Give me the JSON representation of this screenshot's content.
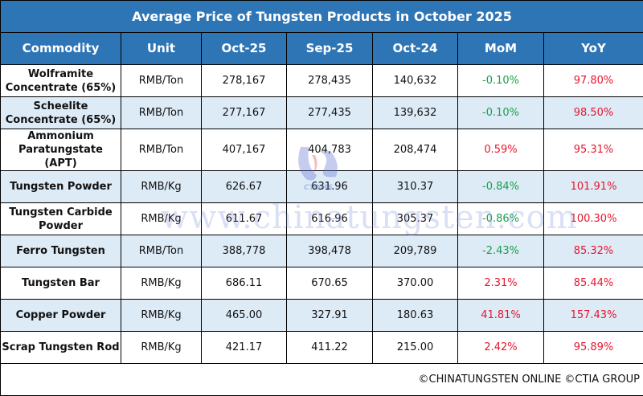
{
  "title": "Average Price of Tungsten Products in October 2025",
  "columns": [
    "Commodity",
    "Unit",
    "Oct-25",
    "Sep-25",
    "Oct-24",
    "MoM",
    "YoY"
  ],
  "rows": [
    {
      "commodity": "Wolframite Concentrate (65%)",
      "unit": "RMB/Ton",
      "oct25": "278,167",
      "sep25": "278,435",
      "oct24": "140,632",
      "mom": "-0.10%",
      "yoy": "97.80%"
    },
    {
      "commodity": "Scheelite Concentrate (65%)",
      "unit": "RMB/Ton",
      "oct25": "277,167",
      "sep25": "277,435",
      "oct24": "139,632",
      "mom": "-0.10%",
      "yoy": "98.50%"
    },
    {
      "commodity": "Ammonium Paratungstate (APT)",
      "unit": "RMB/Ton",
      "oct25": "407,167",
      "sep25": "404,783",
      "oct24": "208,474",
      "mom": "0.59%",
      "yoy": "95.31%"
    },
    {
      "commodity": "Tungsten Powder",
      "unit": "RMB/Kg",
      "oct25": "626.67",
      "sep25": "631.96",
      "oct24": "310.37",
      "mom": "-0.84%",
      "yoy": "101.91%"
    },
    {
      "commodity": "Tungsten Carbide Powder",
      "unit": "RMB/Kg",
      "oct25": "611.67",
      "sep25": "616.96",
      "oct24": "305.37",
      "mom": "-0.86%",
      "yoy": "100.30%"
    },
    {
      "commodity": "Ferro Tungsten",
      "unit": "RMB/Ton",
      "oct25": "388,778",
      "sep25": "398,478",
      "oct24": "209,789",
      "mom": "-2.43%",
      "yoy": "85.32%"
    },
    {
      "commodity": "Tungsten Bar",
      "unit": "RMB/Kg",
      "oct25": "686.11",
      "sep25": "670.65",
      "oct24": "370.00",
      "mom": "2.31%",
      "yoy": "85.44%"
    },
    {
      "commodity": "Copper Powder",
      "unit": "RMB/Kg",
      "oct25": "465.00",
      "sep25": "327.91",
      "oct24": "180.63",
      "mom": "41.81%",
      "yoy": "157.43%"
    },
    {
      "commodity": "Scrap Tungsten Rod",
      "unit": "RMB/Kg",
      "oct25": "421.17",
      "sep25": "411.22",
      "oct24": "215.00",
      "mom": "2.42%",
      "yoy": "95.89%"
    }
  ],
  "footer": "©CHINATUNGSTEN ONLINE ©CTIA GROUP",
  "watermark": "www.chinatungsten.com",
  "logo_text": "CTOMS",
  "colors": {
    "header": "#2E75B6",
    "alt_row": "#DDEBF7",
    "negative": "#1a9e4b",
    "positive": "#e8152e"
  }
}
